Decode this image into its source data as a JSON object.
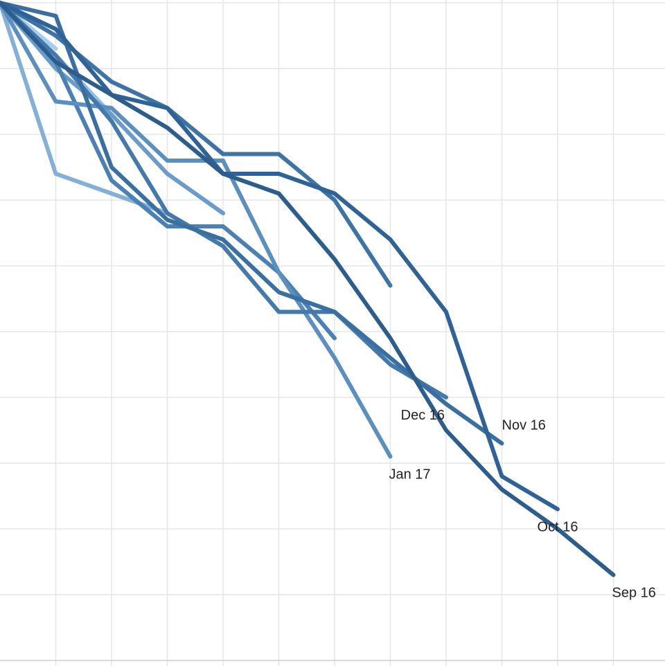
{
  "chart_data": {
    "type": "line",
    "title": "",
    "xlabel": "",
    "ylabel": "",
    "grid": true,
    "legend": "none",
    "xlim": [
      0,
      12
    ],
    "ylim": [
      0,
      10
    ],
    "x_gridlines": [
      1,
      2,
      3,
      4,
      5,
      6,
      7,
      8,
      9,
      10,
      11
    ],
    "y_gridlines": [
      0,
      1,
      2,
      3,
      4,
      5,
      6,
      7,
      8,
      9,
      10
    ],
    "series": [
      {
        "name": "Sep 16",
        "label": "Sep 16",
        "color": "#2c5d8c",
        "points": [
          [
            0,
            10
          ],
          [
            1,
            9.1
          ],
          [
            2,
            8.6
          ],
          [
            3,
            8.1
          ],
          [
            4,
            7.4
          ],
          [
            5,
            7.1
          ],
          [
            6,
            6.1
          ],
          [
            7,
            4.9
          ],
          [
            8,
            3.5
          ],
          [
            9,
            2.6
          ],
          [
            10,
            2.0
          ],
          [
            11,
            1.3
          ]
        ]
      },
      {
        "name": "Oct 16",
        "label": "Oct 16",
        "color": "#2f6296",
        "points": [
          [
            0,
            10
          ],
          [
            1,
            9.6
          ],
          [
            2,
            8.6
          ],
          [
            3,
            8.4
          ],
          [
            4,
            7.4
          ],
          [
            5,
            7.4
          ],
          [
            6,
            7.1
          ],
          [
            7,
            6.4
          ],
          [
            8,
            5.3
          ],
          [
            9,
            2.8
          ],
          [
            10,
            2.3
          ]
        ]
      },
      {
        "name": "Nov 16",
        "label": "Nov 16",
        "color": "#3a6fa1",
        "points": [
          [
            0,
            10
          ],
          [
            1,
            9.8
          ],
          [
            2,
            7.5
          ],
          [
            3,
            6.7
          ],
          [
            4,
            6.4
          ],
          [
            5,
            5.6
          ],
          [
            6,
            5.3
          ],
          [
            7,
            4.6
          ],
          [
            8,
            3.9
          ],
          [
            9,
            3.3
          ]
        ]
      },
      {
        "name": "Dec 16",
        "label": "Dec 16",
        "color": "#4479ab",
        "points": [
          [
            0,
            10
          ],
          [
            1,
            9.2
          ],
          [
            2,
            8.2
          ],
          [
            3,
            6.8
          ],
          [
            4,
            6.3
          ],
          [
            5,
            5.3
          ],
          [
            6,
            5.3
          ],
          [
            7,
            4.5
          ],
          [
            8,
            4.0
          ]
        ]
      },
      {
        "name": "Jan 17",
        "label": "Jan 17",
        "color": "#5b8fc0",
        "points": [
          [
            0,
            10
          ],
          [
            1,
            8.5
          ],
          [
            2,
            8.4
          ],
          [
            3,
            7.6
          ],
          [
            4,
            7.6
          ],
          [
            5,
            5.9
          ],
          [
            6,
            4.6
          ],
          [
            7,
            3.1
          ]
        ]
      },
      {
        "name": "",
        "label": "",
        "color": "#3d73a6",
        "points": [
          [
            0,
            10
          ],
          [
            1,
            9.5
          ],
          [
            2,
            8.8
          ],
          [
            3,
            8.4
          ],
          [
            4,
            7.7
          ],
          [
            5,
            7.7
          ],
          [
            6,
            7.0
          ],
          [
            7,
            5.7
          ]
        ]
      },
      {
        "name": "",
        "label": "",
        "color": "#4a80b3",
        "points": [
          [
            0,
            10
          ],
          [
            1,
            9.1
          ],
          [
            2,
            7.3
          ],
          [
            3,
            6.6
          ],
          [
            4,
            6.6
          ],
          [
            5,
            5.9
          ],
          [
            6,
            4.9
          ]
        ]
      },
      {
        "name": "",
        "label": "",
        "color": "#6a9ccb",
        "points": [
          [
            0,
            10
          ],
          [
            1,
            9.0
          ],
          [
            2,
            8.3
          ],
          [
            3,
            7.4
          ],
          [
            4,
            6.8
          ]
        ]
      },
      {
        "name": "",
        "label": "",
        "color": "#83b0d9",
        "points": [
          [
            0,
            10
          ],
          [
            1,
            7.4
          ],
          [
            2,
            7.1
          ],
          [
            3,
            6.8
          ]
        ]
      },
      {
        "name": "",
        "label": "",
        "color": "#94c0e4",
        "points": [
          [
            0,
            10
          ],
          [
            1,
            9.2
          ],
          [
            2,
            8.3
          ]
        ]
      },
      {
        "name": "",
        "label": "",
        "color": "#a6cdee",
        "points": [
          [
            0,
            10
          ],
          [
            1,
            9.3
          ]
        ]
      }
    ]
  }
}
